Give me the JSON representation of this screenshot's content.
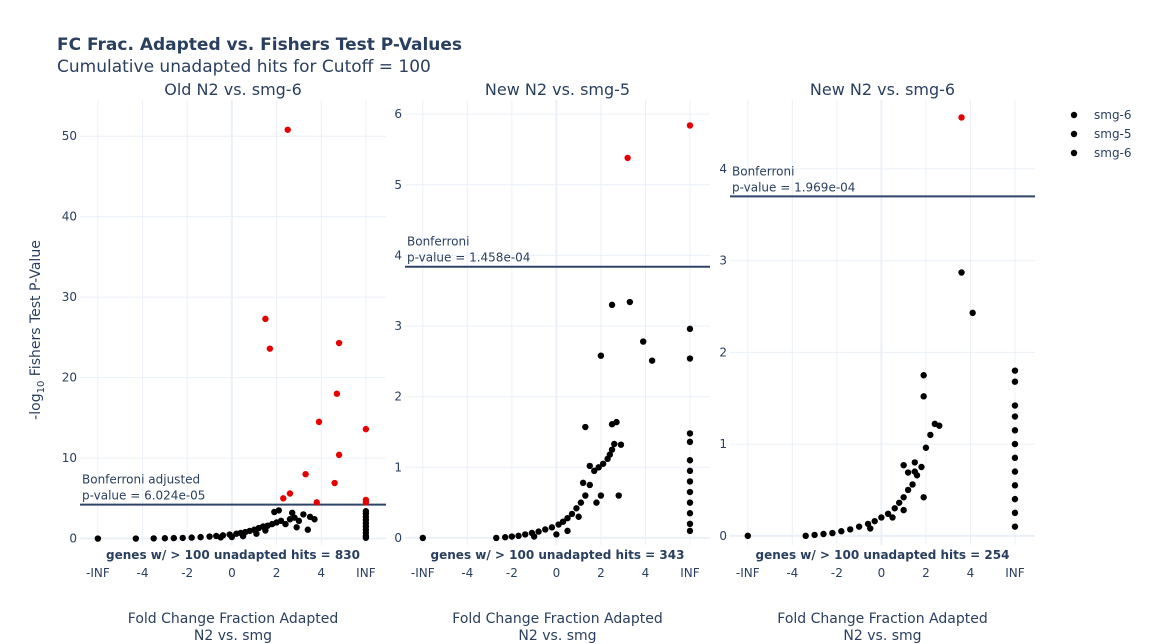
{
  "chart_data": {
    "type": "scatter",
    "title": "FC Frac. Adapted vs. Fishers Test P-Values",
    "subtitle": "Cumulative unadapted hits for Cutoff = 100",
    "ylabel": "-log10 Fishers Test P-Value",
    "xlabel_line1": "Fold Change Fraction Adapted",
    "xlabel_line2": "N2 vs. smg",
    "x_tick_labels": [
      "-INF",
      "-4",
      "-2",
      "0",
      "2",
      "4",
      "INF"
    ],
    "x_tick_values": [
      -6,
      -4,
      -2,
      0,
      2,
      4,
      6
    ],
    "x_range": [
      -6.8,
      6.9
    ],
    "grid": true,
    "colors": {
      "significant": "#e60000",
      "not_significant": "#000000",
      "threshold_line": "#2f4468",
      "grid": "#ebf0f8",
      "text": "#2a3f5f"
    },
    "legend": {
      "position": "top-right",
      "entries": [
        "smg-6",
        "smg-5",
        "smg-6"
      ]
    },
    "panels": [
      {
        "title": "Old N2 vs. smg-6",
        "ylim": [
          -0.8,
          54.5
        ],
        "y_ticks": [
          0,
          10,
          20,
          30,
          40,
          50
        ],
        "threshold": 4.22,
        "threshold_label_1": "Bonferroni adjusted",
        "threshold_label_2": "p-value = 6.024e-05",
        "count_label": "genes w/ > 100 unadapted hits = 830",
        "significant": [
          [
            2.5,
            50.8
          ],
          [
            1.5,
            27.3
          ],
          [
            1.7,
            23.6
          ],
          [
            4.8,
            24.3
          ],
          [
            4.7,
            18.0
          ],
          [
            3.9,
            14.5
          ],
          [
            4.8,
            10.4
          ],
          [
            6.0,
            13.6
          ],
          [
            3.3,
            8.0
          ],
          [
            4.6,
            6.9
          ],
          [
            2.6,
            5.6
          ],
          [
            2.3,
            5.0
          ],
          [
            3.8,
            4.5
          ],
          [
            6.0,
            4.8
          ],
          [
            6.0,
            4.5
          ]
        ],
        "not_significant": [
          [
            -6,
            0
          ],
          [
            -4.3,
            0.0
          ],
          [
            -3.5,
            0.02
          ],
          [
            -3.0,
            0.04
          ],
          [
            -2.6,
            0.06
          ],
          [
            -2.2,
            0.08
          ],
          [
            -1.8,
            0.12
          ],
          [
            -1.4,
            0.18
          ],
          [
            -1.0,
            0.25
          ],
          [
            -0.7,
            0.32
          ],
          [
            -0.4,
            0.4
          ],
          [
            -0.1,
            0.5
          ],
          [
            0.2,
            0.6
          ],
          [
            0.4,
            0.7
          ],
          [
            0.6,
            0.8
          ],
          [
            0.8,
            0.95
          ],
          [
            1.0,
            1.1
          ],
          [
            1.2,
            1.3
          ],
          [
            1.4,
            1.5
          ],
          [
            1.6,
            1.6
          ],
          [
            1.8,
            1.8
          ],
          [
            2.0,
            2.0
          ],
          [
            2.2,
            2.2
          ],
          [
            2.4,
            1.8
          ],
          [
            2.6,
            2.4
          ],
          [
            2.8,
            2.6
          ],
          [
            3.0,
            2.2
          ],
          [
            3.2,
            3.0
          ],
          [
            3.5,
            2.7
          ],
          [
            3.7,
            2.4
          ],
          [
            1.9,
            3.3
          ],
          [
            2.1,
            3.5
          ],
          [
            2.7,
            3.2
          ],
          [
            1.5,
            1.0
          ],
          [
            1.1,
            0.6
          ],
          [
            0.5,
            0.3
          ],
          [
            0,
            0.2
          ],
          [
            -0.5,
            0.15
          ],
          [
            2.9,
            1.4
          ],
          [
            3.4,
            1.1
          ],
          [
            6,
            0.3
          ],
          [
            6,
            0.7
          ],
          [
            6,
            1.1
          ],
          [
            6,
            1.5
          ],
          [
            6,
            1.9
          ],
          [
            6,
            2.3
          ],
          [
            6,
            2.7
          ],
          [
            6,
            3.1
          ],
          [
            6,
            3.4
          ],
          [
            6,
            0.1
          ]
        ]
      },
      {
        "title": "New N2 vs. smg-5",
        "ylim": [
          -0.1,
          6.2
        ],
        "y_ticks": [
          0,
          1,
          2,
          3,
          4,
          5,
          6
        ],
        "threshold": 3.84,
        "threshold_label_1": "Bonferroni",
        "threshold_label_2": "p-value = 1.458e-04",
        "count_label": "genes w/ > 100 unadapted hits = 343",
        "significant": [
          [
            3.2,
            5.38
          ],
          [
            6.0,
            5.84
          ]
        ],
        "not_significant": [
          [
            -6,
            0
          ],
          [
            -2.7,
            0.0
          ],
          [
            -2.3,
            0.01
          ],
          [
            -2.0,
            0.02
          ],
          [
            -1.7,
            0.03
          ],
          [
            -1.4,
            0.05
          ],
          [
            -1.1,
            0.07
          ],
          [
            -0.8,
            0.09
          ],
          [
            -0.5,
            0.12
          ],
          [
            -0.2,
            0.15
          ],
          [
            0.1,
            0.19
          ],
          [
            0.3,
            0.23
          ],
          [
            0.5,
            0.28
          ],
          [
            0.7,
            0.34
          ],
          [
            0.9,
            0.42
          ],
          [
            1.1,
            0.5
          ],
          [
            1.3,
            0.6
          ],
          [
            1.5,
            0.75
          ],
          [
            1.7,
            0.95
          ],
          [
            1.9,
            1.0
          ],
          [
            1.2,
            0.78
          ],
          [
            1.5,
            1.02
          ],
          [
            2.1,
            1.05
          ],
          [
            2.3,
            1.12
          ],
          [
            2.5,
            1.25
          ],
          [
            2.6,
            1.33
          ],
          [
            2.4,
            1.18
          ],
          [
            1.3,
            1.57
          ],
          [
            2.5,
            1.61
          ],
          [
            2.7,
            1.64
          ],
          [
            2.9,
            1.32
          ],
          [
            2.0,
            2.58
          ],
          [
            2.5,
            3.3
          ],
          [
            3.3,
            3.34
          ],
          [
            3.9,
            2.78
          ],
          [
            4.3,
            2.51
          ],
          [
            6.0,
            2.96
          ],
          [
            6.0,
            2.54
          ],
          [
            6.0,
            1.48
          ],
          [
            6.0,
            1.36
          ],
          [
            6.0,
            1.1
          ],
          [
            6.0,
            0.95
          ],
          [
            6.0,
            0.8
          ],
          [
            6.0,
            0.65
          ],
          [
            6.0,
            0.5
          ],
          [
            6.0,
            0.35
          ],
          [
            6.0,
            0.2
          ],
          [
            6.0,
            0.1
          ],
          [
            1.8,
            0.5
          ],
          [
            2.0,
            0.6
          ],
          [
            1.0,
            0.3
          ],
          [
            0.5,
            0.1
          ],
          [
            0.0,
            0.05
          ],
          [
            -1.0,
            0.02
          ],
          [
            2.8,
            0.6
          ]
        ]
      },
      {
        "title": "New N2 vs. smg-6",
        "ylim": [
          -0.1,
          4.75
        ],
        "y_ticks": [
          0,
          1,
          2,
          3,
          4
        ],
        "threshold": 3.7,
        "threshold_label_1": "Bonferroni",
        "threshold_label_2": "p-value = 1.969e-04",
        "count_label": "genes w/ > 100 unadapted hits = 254",
        "significant": [
          [
            3.6,
            4.56
          ]
        ],
        "not_significant": [
          [
            -6,
            0
          ],
          [
            -3.4,
            0.0
          ],
          [
            -3.0,
            0.01
          ],
          [
            -2.6,
            0.02
          ],
          [
            -2.2,
            0.03
          ],
          [
            -1.8,
            0.05
          ],
          [
            -1.4,
            0.07
          ],
          [
            -1.0,
            0.1
          ],
          [
            -0.6,
            0.13
          ],
          [
            -0.3,
            0.16
          ],
          [
            0.0,
            0.2
          ],
          [
            0.3,
            0.24
          ],
          [
            0.6,
            0.3
          ],
          [
            0.8,
            0.36
          ],
          [
            1.0,
            0.42
          ],
          [
            1.2,
            0.5
          ],
          [
            1.4,
            0.56
          ],
          [
            1.6,
            0.66
          ],
          [
            1.8,
            0.75
          ],
          [
            1.0,
            0.77
          ],
          [
            1.2,
            0.69
          ],
          [
            1.5,
            0.7
          ],
          [
            2.0,
            0.96
          ],
          [
            2.2,
            1.1
          ],
          [
            2.4,
            1.22
          ],
          [
            2.6,
            1.2
          ],
          [
            1.9,
            1.52
          ],
          [
            1.9,
            1.75
          ],
          [
            1.5,
            0.8
          ],
          [
            1.9,
            0.42
          ],
          [
            3.6,
            2.87
          ],
          [
            4.1,
            2.43
          ],
          [
            6.0,
            1.8
          ],
          [
            6.0,
            1.68
          ],
          [
            6.0,
            1.42
          ],
          [
            6.0,
            1.3
          ],
          [
            6.0,
            1.15
          ],
          [
            6.0,
            1.0
          ],
          [
            6.0,
            0.85
          ],
          [
            6.0,
            0.7
          ],
          [
            6.0,
            0.55
          ],
          [
            6.0,
            0.4
          ],
          [
            6.0,
            0.25
          ],
          [
            6.0,
            0.1
          ],
          [
            0.5,
            0.2
          ],
          [
            1.0,
            0.28
          ],
          [
            -0.5,
            0.08
          ]
        ]
      }
    ]
  }
}
